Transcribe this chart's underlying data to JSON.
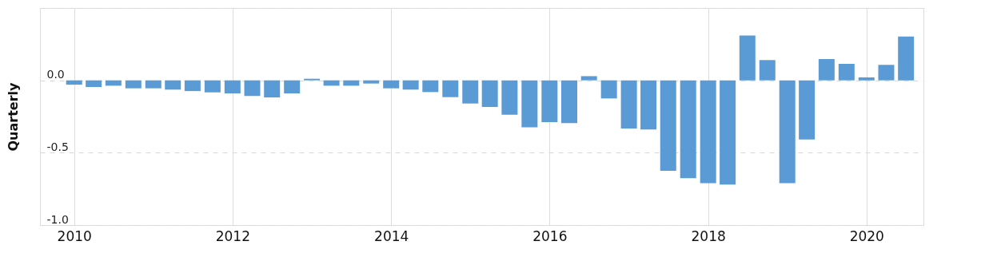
{
  "chart_data": {
    "type": "bar",
    "ylabel": "Quarterly",
    "x": [
      "2010-01",
      "2010-04",
      "2010-07",
      "2010-10",
      "2011-01",
      "2011-04",
      "2011-07",
      "2011-10",
      "2012-01",
      "2012-04",
      "2012-07",
      "2012-10",
      "2013-01",
      "2013-04",
      "2013-07",
      "2013-10",
      "2014-01",
      "2014-04",
      "2014-07",
      "2014-10",
      "2015-01",
      "2015-04",
      "2015-07",
      "2015-10",
      "2016-01",
      "2016-04",
      "2016-07",
      "2016-10",
      "2017-01",
      "2017-04",
      "2017-07",
      "2017-10",
      "2018-01",
      "2018-04",
      "2018-07",
      "2018-10",
      "2019-01",
      "2019-04",
      "2019-07",
      "2019-10",
      "2020-01",
      "2020-04",
      "2020-07"
    ],
    "values": [
      -0.03,
      -0.046,
      -0.037,
      -0.055,
      -0.055,
      -0.064,
      -0.074,
      -0.083,
      -0.09,
      -0.108,
      -0.118,
      -0.09,
      0.011,
      -0.037,
      -0.037,
      -0.022,
      -0.055,
      -0.064,
      -0.081,
      -0.116,
      -0.16,
      -0.184,
      -0.237,
      -0.324,
      -0.289,
      -0.296,
      0.029,
      -0.125,
      -0.333,
      -0.34,
      -0.625,
      -0.676,
      -0.71,
      -0.72,
      0.31,
      0.14,
      -0.71,
      -0.408,
      0.147,
      0.114,
      0.02,
      0.107,
      0.303
    ],
    "color": "#5b9bd5",
    "xlim": [
      "2009-08-15",
      "2020-09-01"
    ],
    "xticks": [
      "2010",
      "2012",
      "2014",
      "2016",
      "2018",
      "2020"
    ],
    "ylim": [
      -1.0,
      0.5
    ],
    "yticks": [
      {
        "value": 0.5,
        "label": null
      },
      {
        "value": 0.0,
        "label": "0.0"
      },
      {
        "value": -0.5,
        "label": "-0.5"
      },
      {
        "value": -1.0,
        "label": "-1.0"
      }
    ],
    "grid": true
  }
}
